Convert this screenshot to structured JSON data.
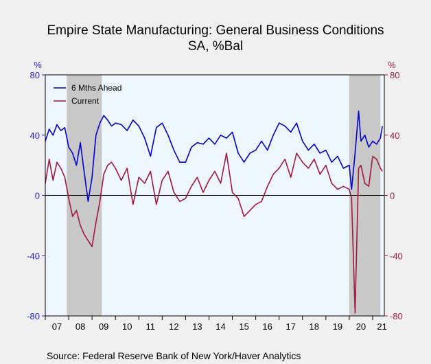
{
  "chart_data": {
    "type": "line",
    "title": "Empire State Manufacturing: General Business Conditions",
    "subtitle": "SA, %Bal",
    "y_left_unit": "%",
    "y_right_unit": "%",
    "ylim": [
      -80,
      80
    ],
    "yticks": [
      -80,
      -40,
      0,
      40,
      80
    ],
    "ytick_labels": [
      "-80",
      "-40",
      "0",
      "40",
      "80"
    ],
    "xlim": [
      2007.0,
      2021.5
    ],
    "x_tick_labels": [
      "07",
      "08",
      "09",
      "10",
      "11",
      "12",
      "13",
      "14",
      "15",
      "16",
      "17",
      "18",
      "19",
      "20",
      "21"
    ],
    "x_tick_years": [
      2007,
      2008,
      2009,
      2010,
      2011,
      2012,
      2013,
      2014,
      2015,
      2016,
      2017,
      2018,
      2019,
      2020,
      2021
    ],
    "recessions": [
      [
        2007.917,
        2009.417
      ],
      [
        2020.0,
        2021.333
      ]
    ],
    "legend_position": "top-left",
    "source": "Source:  Federal Reserve Bank of New York/Haver Analytics",
    "series": [
      {
        "name": "6 Mths Ahead",
        "color": "#0000cc",
        "x": [
          2007.0,
          2007.167,
          2007.333,
          2007.5,
          2007.667,
          2007.833,
          2008.0,
          2008.167,
          2008.333,
          2008.5,
          2008.667,
          2008.833,
          2009.0,
          2009.167,
          2009.333,
          2009.5,
          2009.667,
          2009.833,
          2010.0,
          2010.25,
          2010.5,
          2010.75,
          2011.0,
          2011.25,
          2011.5,
          2011.75,
          2012.0,
          2012.25,
          2012.5,
          2012.75,
          2013.0,
          2013.25,
          2013.5,
          2013.75,
          2014.0,
          2014.25,
          2014.5,
          2014.75,
          2015.0,
          2015.25,
          2015.5,
          2015.75,
          2016.0,
          2016.25,
          2016.5,
          2016.75,
          2017.0,
          2017.25,
          2017.5,
          2017.75,
          2018.0,
          2018.25,
          2018.5,
          2018.75,
          2019.0,
          2019.25,
          2019.5,
          2019.75,
          2020.0,
          2020.1,
          2020.25,
          2020.4,
          2020.5,
          2020.667,
          2020.833,
          2021.0,
          2021.167,
          2021.333,
          2021.417
        ],
        "values": [
          36,
          44,
          40,
          47,
          43,
          45,
          32,
          28,
          20,
          35,
          15,
          -4,
          12,
          40,
          48,
          53,
          50,
          46,
          48,
          47,
          43,
          50,
          46,
          38,
          26,
          45,
          48,
          40,
          30,
          22,
          22,
          32,
          35,
          34,
          38,
          34,
          40,
          38,
          42,
          28,
          22,
          28,
          30,
          36,
          30,
          40,
          48,
          46,
          42,
          48,
          36,
          30,
          34,
          28,
          30,
          22,
          26,
          18,
          20,
          4,
          28,
          56,
          36,
          40,
          32,
          36,
          34,
          38,
          46
        ]
      },
      {
        "name": "Current",
        "color": "#a0183c",
        "x": [
          2007.0,
          2007.167,
          2007.333,
          2007.5,
          2007.667,
          2007.833,
          2008.0,
          2008.167,
          2008.333,
          2008.5,
          2008.667,
          2008.833,
          2009.0,
          2009.167,
          2009.333,
          2009.5,
          2009.667,
          2009.833,
          2010.0,
          2010.25,
          2010.5,
          2010.75,
          2011.0,
          2011.25,
          2011.5,
          2011.75,
          2012.0,
          2012.25,
          2012.5,
          2012.75,
          2013.0,
          2013.25,
          2013.5,
          2013.75,
          2014.0,
          2014.25,
          2014.5,
          2014.75,
          2015.0,
          2015.25,
          2015.5,
          2015.75,
          2016.0,
          2016.25,
          2016.5,
          2016.75,
          2017.0,
          2017.25,
          2017.5,
          2017.75,
          2018.0,
          2018.25,
          2018.5,
          2018.75,
          2019.0,
          2019.25,
          2019.5,
          2019.75,
          2020.0,
          2020.1,
          2020.25,
          2020.4,
          2020.5,
          2020.667,
          2020.833,
          2021.0,
          2021.167,
          2021.333,
          2021.417
        ],
        "values": [
          8,
          24,
          10,
          22,
          18,
          12,
          -2,
          -14,
          -10,
          -20,
          -26,
          -30,
          -34,
          -18,
          -4,
          14,
          20,
          22,
          18,
          10,
          18,
          -6,
          12,
          8,
          16,
          -6,
          10,
          16,
          2,
          -4,
          -2,
          6,
          12,
          2,
          10,
          16,
          8,
          28,
          2,
          -2,
          -14,
          -10,
          -6,
          -4,
          6,
          14,
          18,
          24,
          12,
          28,
          22,
          18,
          24,
          14,
          20,
          8,
          4,
          6,
          4,
          -2,
          -78,
          18,
          20,
          8,
          6,
          26,
          24,
          18,
          16
        ]
      }
    ]
  }
}
